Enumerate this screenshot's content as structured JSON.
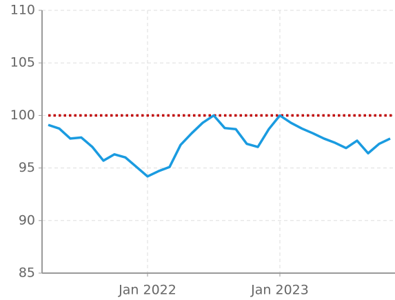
{
  "chart_data": {
    "type": "line",
    "x": [
      "2021-04",
      "2021-05",
      "2021-06",
      "2021-07",
      "2021-08",
      "2021-09",
      "2021-10",
      "2021-11",
      "2021-12",
      "2022-01",
      "2022-02",
      "2022-03",
      "2022-04",
      "2022-05",
      "2022-06",
      "2022-07",
      "2022-08",
      "2022-09",
      "2022-10",
      "2022-11",
      "2022-12",
      "2023-01",
      "2023-02",
      "2023-03",
      "2023-04",
      "2023-05",
      "2023-06",
      "2023-07",
      "2023-08",
      "2023-09",
      "2023-10",
      "2023-11"
    ],
    "series": [
      {
        "color": "#1a9be0",
        "values": [
          99.1,
          98.75,
          97.8,
          97.9,
          97.0,
          95.7,
          96.3,
          96.0,
          95.1,
          94.2,
          94.7,
          95.1,
          97.2,
          98.3,
          99.3,
          100,
          98.8,
          98.7,
          97.3,
          97.0,
          98.7,
          100,
          99.3,
          98.75,
          98.3,
          97.8,
          97.4,
          96.9,
          97.6,
          96.4,
          97.3,
          97.8
        ]
      }
    ],
    "reference_line": {
      "value": 100,
      "color": "#c00000"
    },
    "xlim": [
      "2021-04",
      "2023-11"
    ],
    "xticks": [
      {
        "value": "2022-01",
        "label": "Jan 2022"
      },
      {
        "value": "2023-01",
        "label": "Jan 2023"
      }
    ],
    "ylim": [
      85,
      110
    ],
    "yticks": [
      85,
      90,
      95,
      100,
      105,
      110
    ],
    "grid": true
  }
}
